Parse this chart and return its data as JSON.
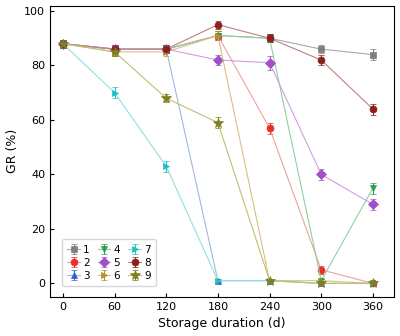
{
  "x": [
    0,
    60,
    120,
    180,
    240,
    300,
    360
  ],
  "series": [
    {
      "label": "1",
      "marker": "s",
      "mcolor": "#7f7f7f",
      "lcolor": "#aaaaaa",
      "values": [
        88,
        86,
        86,
        91,
        90,
        86,
        84
      ],
      "yerr": [
        1.5,
        1.0,
        1.5,
        1.5,
        1.5,
        1.5,
        2.0
      ]
    },
    {
      "label": "2",
      "marker": "o",
      "mcolor": "#e8302a",
      "lcolor": "#f0a0a0",
      "values": [
        88,
        86,
        86,
        91,
        57,
        5,
        0
      ],
      "yerr": [
        1.5,
        1.5,
        1.5,
        1.5,
        2.0,
        1.5,
        0.5
      ]
    },
    {
      "label": "3",
      "marker": "^",
      "mcolor": "#3060c0",
      "lcolor": "#a0b8e0",
      "values": [
        88,
        86,
        86,
        1,
        1,
        0,
        0
      ],
      "yerr": [
        1.5,
        1.5,
        1.5,
        0.5,
        0.5,
        0.3,
        0.3
      ]
    },
    {
      "label": "4",
      "marker": "v",
      "mcolor": "#28a050",
      "lcolor": "#90d0a0",
      "values": [
        88,
        86,
        86,
        91,
        90,
        1,
        35
      ],
      "yerr": [
        1.5,
        1.5,
        1.5,
        1.5,
        1.5,
        0.5,
        2.0
      ]
    },
    {
      "label": "5",
      "marker": "D",
      "mcolor": "#a050c8",
      "lcolor": "#d0a0e0",
      "values": [
        88,
        86,
        86,
        82,
        81,
        40,
        29
      ],
      "yerr": [
        1.5,
        1.5,
        1.5,
        2.0,
        2.5,
        2.0,
        2.0
      ]
    },
    {
      "label": "6",
      "marker": ">",
      "mcolor": "#b8902a",
      "lcolor": "#d8c080",
      "values": [
        88,
        85,
        85,
        91,
        1,
        1,
        0
      ],
      "yerr": [
        1.5,
        1.5,
        1.5,
        1.5,
        0.5,
        0.5,
        0.3
      ]
    },
    {
      "label": "7",
      "marker": ">",
      "mcolor": "#20c0c0",
      "lcolor": "#90e0e0",
      "values": [
        88,
        70,
        43,
        1,
        1,
        0,
        0
      ],
      "yerr": [
        1.5,
        2.0,
        2.0,
        0.5,
        0.5,
        0.3,
        0.3
      ]
    },
    {
      "label": "8",
      "marker": "o",
      "mcolor": "#8b2020",
      "lcolor": "#c08080",
      "values": [
        88,
        86,
        86,
        95,
        90,
        82,
        64
      ],
      "yerr": [
        1.5,
        1.5,
        1.5,
        1.5,
        1.5,
        2.0,
        2.0
      ]
    },
    {
      "label": "9",
      "marker": "*",
      "mcolor": "#808020",
      "lcolor": "#c0c070",
      "values": [
        88,
        85,
        68,
        59,
        1,
        0,
        0
      ],
      "yerr": [
        1.5,
        1.5,
        1.5,
        2.0,
        0.5,
        0.3,
        0.3
      ]
    }
  ],
  "xlabel": "Storage duration (d)",
  "ylabel": "GR (%)",
  "ylim": [
    -5,
    102
  ],
  "yticks": [
    0,
    20,
    40,
    60,
    80,
    100
  ],
  "xticks": [
    0,
    60,
    120,
    180,
    240,
    300,
    360
  ],
  "legend_order": [
    "1",
    "2",
    "3",
    "4",
    "5",
    "6",
    "7",
    "8",
    "9"
  ],
  "background_color": "#ffffff"
}
